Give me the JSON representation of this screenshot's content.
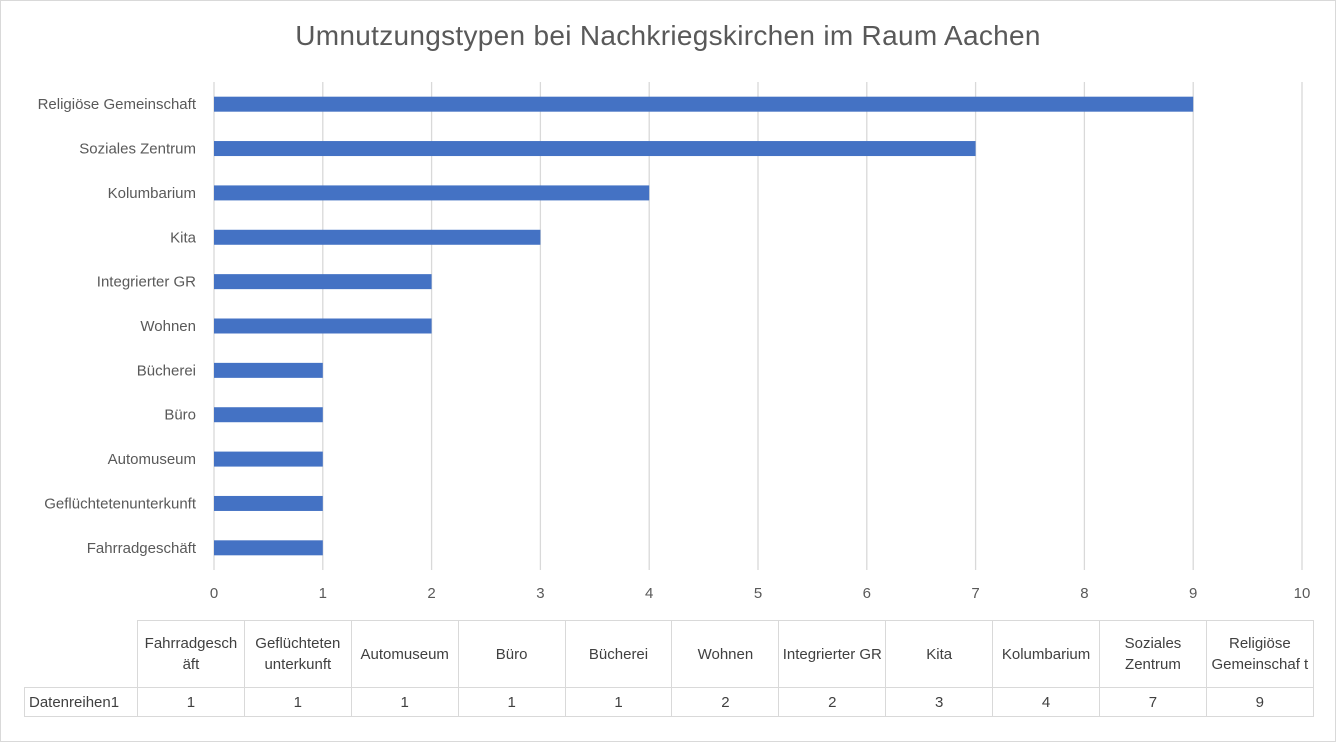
{
  "chart_data": {
    "type": "bar",
    "orientation": "horizontal",
    "title": "Umnutzungstypen  bei Nachkriegskirchen im Raum Aachen",
    "categories": [
      "Fahrradgeschäft",
      "Geflüchtetenunterkunft",
      "Automuseum",
      "Büro",
      "Bücherei",
      "Wohnen",
      "Integrierter GR",
      "Kita",
      "Kolumbarium",
      "Soziales Zentrum",
      "Religiöse Gemeinschaft"
    ],
    "series": [
      {
        "name": "Datenreihen1",
        "values": [
          1,
          1,
          1,
          1,
          1,
          2,
          2,
          3,
          4,
          7,
          9
        ]
      }
    ],
    "xlim": [
      0,
      10
    ],
    "xticks": [
      "0",
      "1",
      "2",
      "3",
      "4",
      "5",
      "6",
      "7",
      "8",
      "9",
      "10"
    ],
    "xlabel": "",
    "ylabel": "",
    "grid": "vertical",
    "legend": "none",
    "bar_color": "#4472c4",
    "data_table": {
      "headers": [
        "Fahrradgesch äft",
        "Geflüchteten unterkunft",
        "Automuseum",
        "Büro",
        "Bücherei",
        "Wohnen",
        "Integrierter GR",
        "Kita",
        "Kolumbarium",
        "Soziales Zentrum",
        "Religiöse Gemeinschaf t"
      ],
      "series_label": "Datenreihen1",
      "values": [
        "1",
        "1",
        "1",
        "1",
        "1",
        "2",
        "2",
        "3",
        "4",
        "7",
        "9"
      ]
    }
  }
}
